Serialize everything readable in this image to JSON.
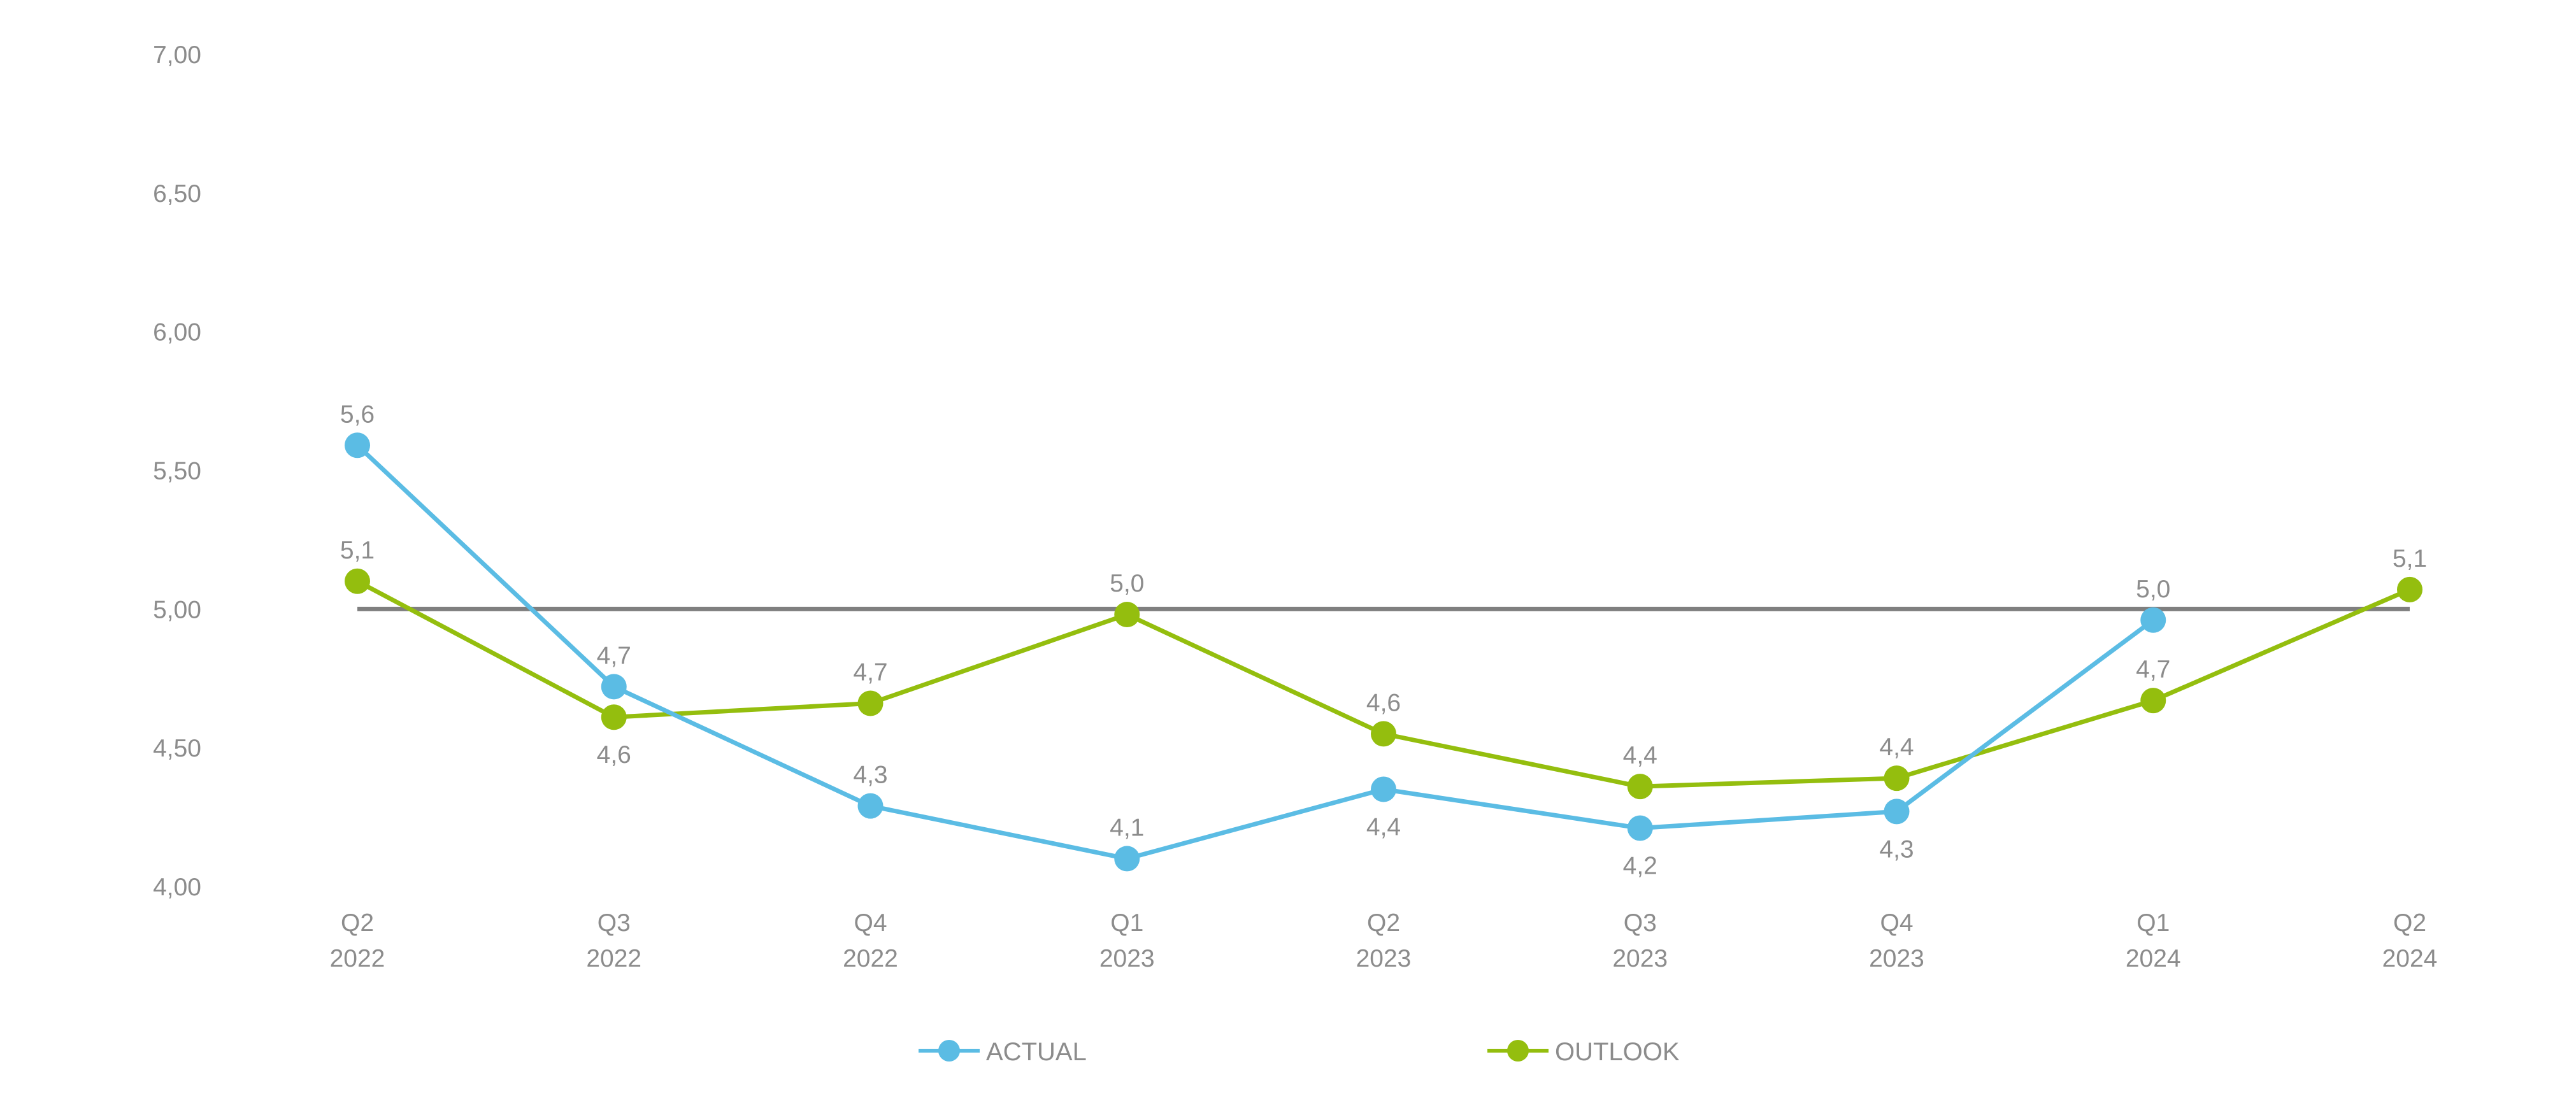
{
  "chart_data": {
    "type": "line",
    "categories": [
      [
        "Q2",
        "2022"
      ],
      [
        "Q3",
        "2022"
      ],
      [
        "Q4",
        "2022"
      ],
      [
        "Q1",
        "2023"
      ],
      [
        "Q2",
        "2023"
      ],
      [
        "Q3",
        "2023"
      ],
      [
        "Q4",
        "2023"
      ],
      [
        "Q1",
        "2024"
      ],
      [
        "Q2",
        "2024"
      ]
    ],
    "ylim": [
      4.0,
      7.0
    ],
    "yticks": [
      4.0,
      4.5,
      5.0,
      5.5,
      6.0,
      6.5,
      7.0
    ],
    "ytick_labels": [
      "4,00",
      "4,50",
      "5,00",
      "5,50",
      "6,00",
      "6,50",
      "7,00"
    ],
    "reference_line": {
      "value": 5.0,
      "color": "#7f7f7f"
    },
    "grid": false,
    "legend_position": "bottom-center",
    "series": [
      {
        "name": "ACTUAL",
        "color": "#5bbce4",
        "values": [
          5.59,
          4.72,
          4.29,
          4.1,
          4.35,
          4.21,
          4.27,
          4.96,
          null
        ],
        "labels": [
          "5,6",
          "4,7",
          "4,3",
          "4,1",
          "4,4",
          "4,2",
          "4,3",
          "5,0",
          null
        ],
        "label_side": [
          "above",
          "above",
          "above",
          "above",
          "below",
          "below",
          "below",
          "above",
          null
        ]
      },
      {
        "name": "OUTLOOK",
        "color": "#94be0e",
        "values": [
          5.1,
          4.61,
          4.66,
          4.98,
          4.55,
          4.36,
          4.39,
          4.67,
          5.07
        ],
        "labels": [
          "5,1",
          "4,6",
          "4,7",
          "5,0",
          "4,6",
          "4,4",
          "4,4",
          "4,7",
          "5,1"
        ],
        "label_side": [
          "above",
          "below",
          "above",
          "above",
          "above",
          "above",
          "above",
          "above",
          "above"
        ]
      }
    ]
  }
}
